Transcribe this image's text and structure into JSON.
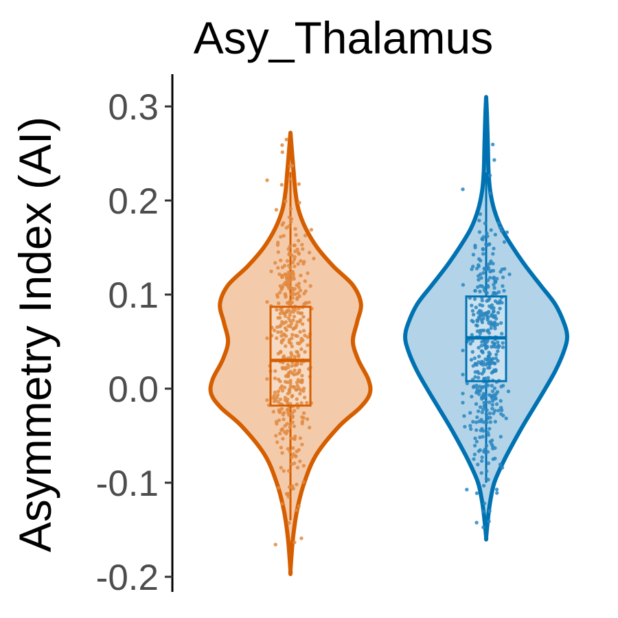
{
  "chart_data": {
    "type": "violin",
    "title": "Asy_Thalamus",
    "xlabel": "",
    "ylabel": "Asymmetry Index (AI)",
    "ylim": [
      -0.21,
      0.33
    ],
    "yticks": [
      0.3,
      0.2,
      0.1,
      0.0,
      -0.1,
      -0.2
    ],
    "ytick_labels": [
      "0.3",
      "0.2",
      "0.1",
      "0.0",
      "-0.1",
      "-0.2"
    ],
    "grid": false,
    "legend": "none",
    "groups": [
      {
        "color": "#d55e00",
        "fill": "#f3cbab",
        "points_color": "#e08a40",
        "box": {
          "q1": -0.018,
          "median": 0.03,
          "q3": 0.087,
          "whisker_low": -0.14,
          "whisker_high": 0.23
        },
        "range": [
          -0.193,
          0.272
        ],
        "density": [
          [
            -0.193,
            0.0
          ],
          [
            -0.16,
            0.03
          ],
          [
            -0.13,
            0.08
          ],
          [
            -0.1,
            0.17
          ],
          [
            -0.07,
            0.32
          ],
          [
            -0.04,
            0.6
          ],
          [
            -0.02,
            0.86
          ],
          [
            -0.005,
            0.98
          ],
          [
            0.01,
            0.96
          ],
          [
            0.03,
            0.84
          ],
          [
            0.05,
            0.77
          ],
          [
            0.07,
            0.82
          ],
          [
            0.09,
            0.87
          ],
          [
            0.11,
            0.77
          ],
          [
            0.13,
            0.53
          ],
          [
            0.15,
            0.33
          ],
          [
            0.17,
            0.19
          ],
          [
            0.19,
            0.1
          ],
          [
            0.21,
            0.06
          ],
          [
            0.23,
            0.04
          ],
          [
            0.25,
            0.02
          ],
          [
            0.272,
            0.0
          ]
        ]
      },
      {
        "color": "#0072b2",
        "fill": "#b3d4e8",
        "points_color": "#2a86c0",
        "box": {
          "q1": 0.008,
          "median": 0.054,
          "q3": 0.098,
          "whisker_low": -0.1,
          "whisker_high": 0.23
        },
        "range": [
          -0.158,
          0.31
        ],
        "density": [
          [
            -0.158,
            0.0
          ],
          [
            -0.14,
            0.02
          ],
          [
            -0.12,
            0.05
          ],
          [
            -0.1,
            0.1
          ],
          [
            -0.08,
            0.2
          ],
          [
            -0.06,
            0.32
          ],
          [
            -0.04,
            0.45
          ],
          [
            -0.02,
            0.59
          ],
          [
            0.0,
            0.73
          ],
          [
            0.02,
            0.86
          ],
          [
            0.04,
            0.96
          ],
          [
            0.055,
            1.0
          ],
          [
            0.07,
            0.96
          ],
          [
            0.09,
            0.85
          ],
          [
            0.11,
            0.67
          ],
          [
            0.13,
            0.49
          ],
          [
            0.15,
            0.33
          ],
          [
            0.17,
            0.19
          ],
          [
            0.19,
            0.1
          ],
          [
            0.21,
            0.05
          ],
          [
            0.23,
            0.03
          ],
          [
            0.26,
            0.02
          ],
          [
            0.29,
            0.01
          ],
          [
            0.31,
            0.0
          ]
        ]
      }
    ]
  }
}
